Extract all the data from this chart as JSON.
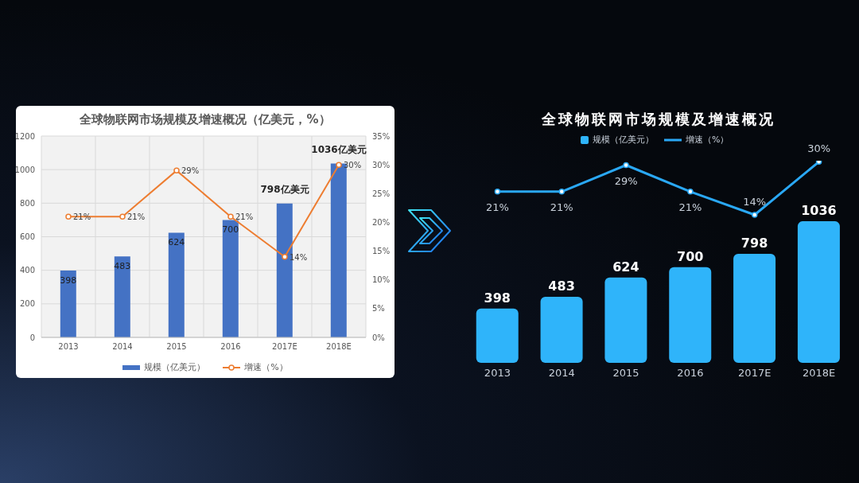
{
  "chart_data": [
    {
      "type": "bar",
      "title": "全球物联网市场规模及增速概况（亿美元，%）",
      "categories": [
        "2013",
        "2014",
        "2015",
        "2016",
        "2017E",
        "2018E"
      ],
      "series": [
        {
          "name": "规模（亿美元）",
          "color": "#4472c4",
          "values": [
            398,
            483,
            624,
            700,
            798,
            1036
          ],
          "value_labels": [
            "398",
            "483",
            "624",
            "700",
            null,
            null
          ]
        },
        {
          "name": "增速（%）",
          "type": "line",
          "axis": "y2",
          "color": "#ed7d31",
          "values": [
            21,
            21,
            29,
            21,
            14,
            30
          ],
          "value_labels": [
            "21%",
            "21%",
            "29%",
            "21%",
            "14%",
            "30%"
          ]
        }
      ],
      "ylim": [
        0,
        1200
      ],
      "yticks": [
        0,
        200,
        400,
        600,
        800,
        1000,
        1200
      ],
      "y2lim": [
        0,
        35
      ],
      "y2ticks": [
        {
          "value": 0,
          "label": "0%"
        },
        {
          "value": 5,
          "label": "5%"
        },
        {
          "value": 10,
          "label": "10%"
        },
        {
          "value": 15,
          "label": "15%"
        },
        {
          "value": 20,
          "label": "20%"
        },
        {
          "value": 25,
          "label": "25%"
        },
        {
          "value": 30,
          "label": "30%"
        },
        {
          "value": 35,
          "label": "35%"
        }
      ],
      "annotations": [
        {
          "text": "798亿美元",
          "x": "2017E",
          "y": 798
        },
        {
          "text": "1036亿美元",
          "x": "2018E",
          "y": 1036
        }
      ],
      "grid": true,
      "legend": "bottom",
      "marker": "circle"
    },
    {
      "type": "line",
      "title": "全球物联网市场规模及增速概况",
      "categories": [
        "2013",
        "2014",
        "2015",
        "2016",
        "2017E",
        "2018E"
      ],
      "series": [
        {
          "name": "增速（%）",
          "color": "#2aa8f5",
          "values": [
            21,
            21,
            29,
            21,
            14,
            30
          ],
          "value_labels": [
            "21%",
            "21%",
            "29%",
            "21%",
            "14%",
            "30%"
          ]
        }
      ],
      "tick_labels": false,
      "legend": "top",
      "marker": "circle"
    },
    {
      "type": "bar",
      "categories": [
        "2013",
        "2014",
        "2015",
        "2016",
        "2017E",
        "2018E"
      ],
      "series": [
        {
          "name": "规模（亿美元）",
          "color": "#2fb4fa",
          "values": [
            398,
            483,
            624,
            700,
            798,
            1036
          ],
          "value_labels": [
            "398",
            "483",
            "624",
            "700",
            "798",
            "1036"
          ]
        }
      ],
      "tick_labels": "x",
      "legend": "top"
    }
  ]
}
